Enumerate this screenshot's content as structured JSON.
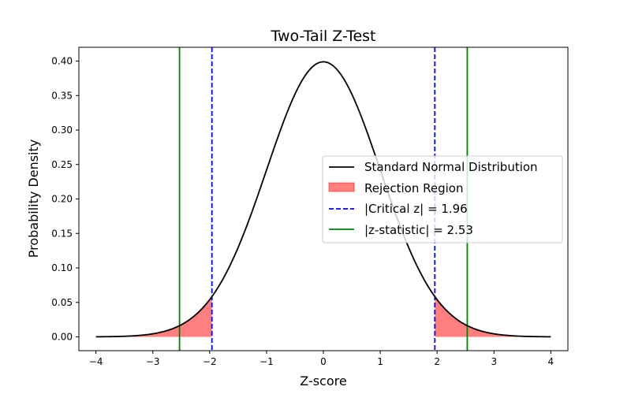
{
  "chart_data": {
    "type": "line",
    "title": "Two-Tail Z-Test",
    "xlabel": "Z-score",
    "ylabel": "Probability Density",
    "xlim": [
      -4.3,
      4.3
    ],
    "ylim": [
      -0.02,
      0.42
    ],
    "xticks": [
      -4,
      -3,
      -2,
      -1,
      0,
      1,
      2,
      3,
      4
    ],
    "yticks": [
      0.0,
      0.05,
      0.1,
      0.15,
      0.2,
      0.25,
      0.3,
      0.35,
      0.4
    ],
    "ytick_labels": [
      "0.00",
      "0.05",
      "0.10",
      "0.15",
      "0.20",
      "0.25",
      "0.30",
      "0.35",
      "0.40"
    ],
    "grid": false,
    "legend_position": "center-right",
    "curve": {
      "name": "Standard Normal Distribution",
      "x_range": [
        -4,
        4
      ],
      "mean": 0,
      "sd": 1,
      "color": "#000000"
    },
    "rejection_region": {
      "name": "Rejection Region",
      "lower_tail_upper_bound": -1.96,
      "upper_tail_lower_bound": 1.96,
      "color": "#ff0000",
      "opacity": 0.5
    },
    "critical_lines": {
      "name": "|Critical z| = 1.96",
      "values": [
        -1.96,
        1.96
      ],
      "color": "#0000ff",
      "style": "dashed"
    },
    "statistic_lines": {
      "name": "|z-statistic| = 2.53",
      "values": [
        -2.53,
        2.53
      ],
      "color": "#008000",
      "style": "solid"
    }
  }
}
